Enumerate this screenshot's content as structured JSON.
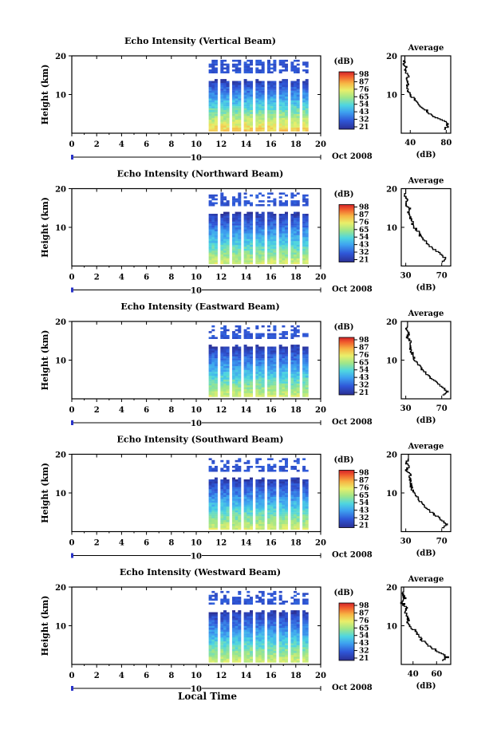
{
  "figure": {
    "xlabel_bottom": "Local Time",
    "date_label": "Oct 2008",
    "day_marker": "10",
    "x_ticks": [
      "0",
      "2",
      "4",
      "6",
      "8",
      "10",
      "12",
      "14",
      "16",
      "18",
      "20"
    ],
    "y_ticks": [
      "10",
      "20"
    ],
    "ylabel": "Height (km)",
    "colorbar_title": "(dB)",
    "avg_title": "Average",
    "avg_xlabel": "(dB)"
  },
  "chart_data": [
    {
      "type": "heatmap",
      "title": "Echo Intensity (Vertical Beam)",
      "xlabel": "",
      "ylabel": "Height (km)",
      "xlim": [
        0,
        20
      ],
      "ylim": [
        0,
        20
      ],
      "data_time_range": [
        11,
        19
      ],
      "colorbar": {
        "label": "(dB)",
        "ticks": [
          "98",
          "87",
          "76",
          "65",
          "54",
          "43",
          "32",
          "21"
        ]
      },
      "average_profile": {
        "title": "Average",
        "xlabel": "(dB)",
        "xticks": [
          "40",
          "80"
        ],
        "xlim": [
          30,
          85
        ],
        "height": [
          1,
          2,
          3,
          4,
          5,
          6,
          7,
          8,
          9,
          10,
          11,
          12,
          13,
          14,
          15,
          16,
          17,
          18,
          19
        ],
        "db": [
          78,
          82,
          80,
          70,
          63,
          58,
          52,
          47,
          44,
          40,
          38,
          37,
          37,
          36,
          38,
          34,
          36,
          32,
          34
        ]
      }
    },
    {
      "type": "heatmap",
      "title": "Echo Intensity (Northward Beam)",
      "xlabel": "",
      "ylabel": "Height (km)",
      "xlim": [
        0,
        20
      ],
      "ylim": [
        0,
        20
      ],
      "data_time_range": [
        11,
        19
      ],
      "colorbar": {
        "label": "(dB)",
        "ticks": [
          "98",
          "87",
          "76",
          "65",
          "54",
          "43",
          "32",
          "21"
        ]
      },
      "average_profile": {
        "title": "Average",
        "xlabel": "(dB)",
        "xticks": [
          "30",
          "70"
        ],
        "xlim": [
          25,
          80
        ],
        "height": [
          1,
          2,
          3,
          4,
          5,
          6,
          7,
          8,
          9,
          10,
          11,
          12,
          13,
          14,
          15,
          16,
          17,
          18,
          19
        ],
        "db": [
          70,
          74,
          70,
          64,
          58,
          54,
          50,
          46,
          44,
          40,
          38,
          36,
          34,
          33,
          35,
          30,
          32,
          29,
          30
        ]
      }
    },
    {
      "type": "heatmap",
      "title": "Echo Intensity (Eastward Beam)",
      "xlabel": "",
      "ylabel": "Height (km)",
      "xlim": [
        0,
        20
      ],
      "ylim": [
        0,
        20
      ],
      "data_time_range": [
        11,
        19
      ],
      "colorbar": {
        "label": "(dB)",
        "ticks": [
          "98",
          "87",
          "76",
          "65",
          "54",
          "43",
          "32",
          "21"
        ]
      },
      "average_profile": {
        "title": "Average",
        "xlabel": "(dB)",
        "xticks": [
          "30",
          "70"
        ],
        "xlim": [
          25,
          80
        ],
        "height": [
          1,
          2,
          3,
          4,
          5,
          6,
          7,
          8,
          9,
          10,
          11,
          12,
          13,
          14,
          15,
          16,
          17,
          18,
          19
        ],
        "db": [
          72,
          76,
          72,
          66,
          60,
          55,
          51,
          47,
          44,
          40,
          38,
          37,
          35,
          34,
          36,
          31,
          34,
          30,
          32
        ]
      }
    },
    {
      "type": "heatmap",
      "title": "Echo Intensity (Southward Beam)",
      "xlabel": "",
      "ylabel": "Height (km)",
      "xlim": [
        0,
        20
      ],
      "ylim": [
        0,
        20
      ],
      "data_time_range": [
        11,
        19
      ],
      "colorbar": {
        "label": "(dB)",
        "ticks": [
          "98",
          "87",
          "76",
          "65",
          "54",
          "43",
          "32",
          "21"
        ]
      },
      "average_profile": {
        "title": "Average",
        "xlabel": "(dB)",
        "xticks": [
          "30",
          "70"
        ],
        "xlim": [
          25,
          80
        ],
        "height": [
          1,
          2,
          3,
          4,
          5,
          6,
          7,
          8,
          9,
          10,
          11,
          12,
          13,
          14,
          15,
          16,
          17,
          18,
          19
        ],
        "db": [
          71,
          75,
          71,
          65,
          59,
          54,
          50,
          46,
          43,
          39,
          37,
          36,
          35,
          34,
          36,
          31,
          34,
          30,
          33
        ]
      }
    },
    {
      "type": "heatmap",
      "title": "Echo Intensity (Westward Beam)",
      "xlabel": "",
      "ylabel": "Height (km)",
      "xlim": [
        0,
        20
      ],
      "ylim": [
        0,
        20
      ],
      "data_time_range": [
        11,
        19
      ],
      "colorbar": {
        "label": "(dB)",
        "ticks": [
          "98",
          "87",
          "76",
          "65",
          "54",
          "43",
          "32",
          "21"
        ]
      },
      "average_profile": {
        "title": "Average",
        "xlabel": "(dB)",
        "xticks": [
          "40",
          "60"
        ],
        "xlim": [
          30,
          72
        ],
        "height": [
          1,
          2,
          3,
          4,
          5,
          6,
          7,
          8,
          9,
          10,
          11,
          12,
          13,
          14,
          15,
          16,
          17,
          18,
          19
        ],
        "db": [
          66,
          69,
          65,
          58,
          53,
          49,
          46,
          43,
          41,
          38,
          36,
          35,
          34,
          33,
          34,
          31,
          33,
          31,
          32
        ]
      }
    }
  ]
}
